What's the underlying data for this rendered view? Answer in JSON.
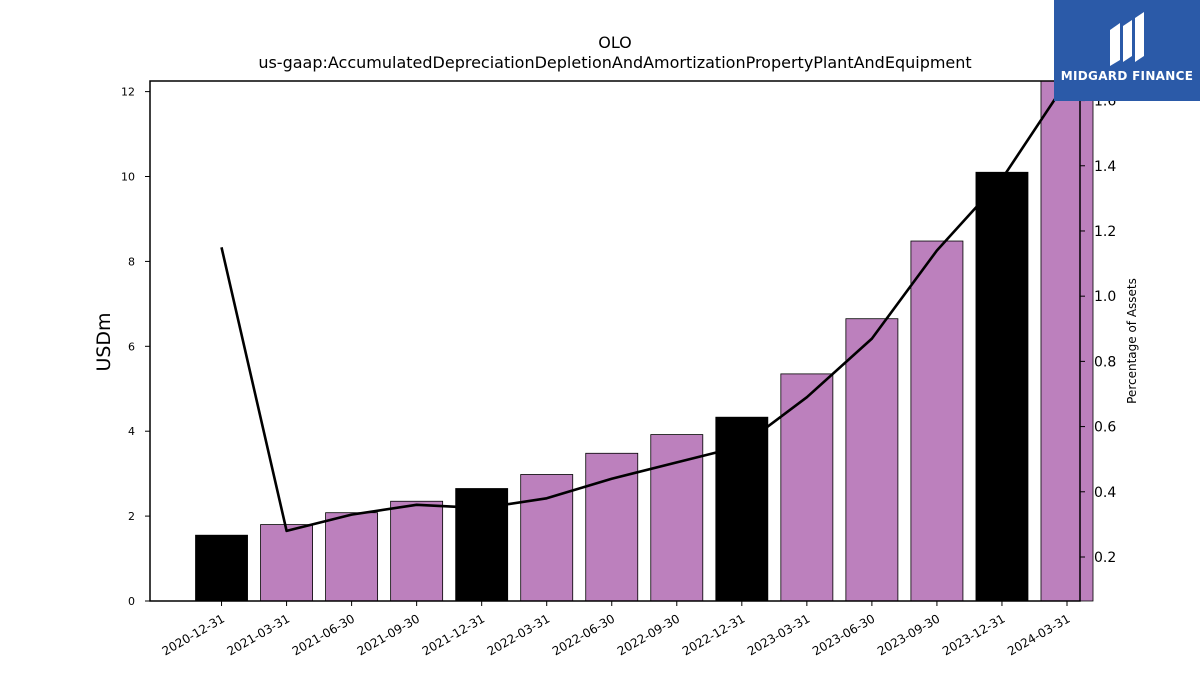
{
  "chart_data": {
    "type": "bar",
    "title": "OLO",
    "subtitle": "us-gaap:AccumulatedDepreciationDepletionAndAmortizationPropertyPlantAndEquipment",
    "ylabel": "USDm",
    "y2label": "Percentage of Assets",
    "categories": [
      "2020-12-31",
      "2021-03-31",
      "2021-06-30",
      "2021-09-30",
      "2021-12-31",
      "2022-03-31",
      "2022-06-30",
      "2022-09-30",
      "2022-12-31",
      "2023-03-31",
      "2023-06-30",
      "2023-09-30",
      "2023-12-31",
      "2024-03-31"
    ],
    "values": [
      1.55,
      1.8,
      2.08,
      2.35,
      2.65,
      2.98,
      3.48,
      3.92,
      4.33,
      5.35,
      6.65,
      8.48,
      10.1,
      12.25
    ],
    "bar_colors": [
      "#000000",
      "#bc80bd",
      "#bc80bd",
      "#bc80bd",
      "#000000",
      "#bc80bd",
      "#bc80bd",
      "#bc80bd",
      "#000000",
      "#bc80bd",
      "#bc80bd",
      "#bc80bd",
      "#000000",
      "#bc80bd"
    ],
    "line_values": [
      1.15,
      0.28,
      0.33,
      0.36,
      0.35,
      0.38,
      0.44,
      0.49,
      0.54,
      0.69,
      0.87,
      1.14,
      1.36,
      1.66
    ],
    "ylim": [
      0,
      12.25
    ],
    "y2lim": [
      0.065,
      1.66
    ],
    "yticks": [
      0,
      2,
      4,
      6,
      8,
      10,
      12
    ],
    "y2ticks": [
      0.2,
      0.4,
      0.6,
      0.8,
      1.0,
      1.2,
      1.4,
      1.6
    ],
    "grid": false
  },
  "brand": {
    "name": "MIDGARD FINANCE",
    "color": "#2b5aa8"
  }
}
